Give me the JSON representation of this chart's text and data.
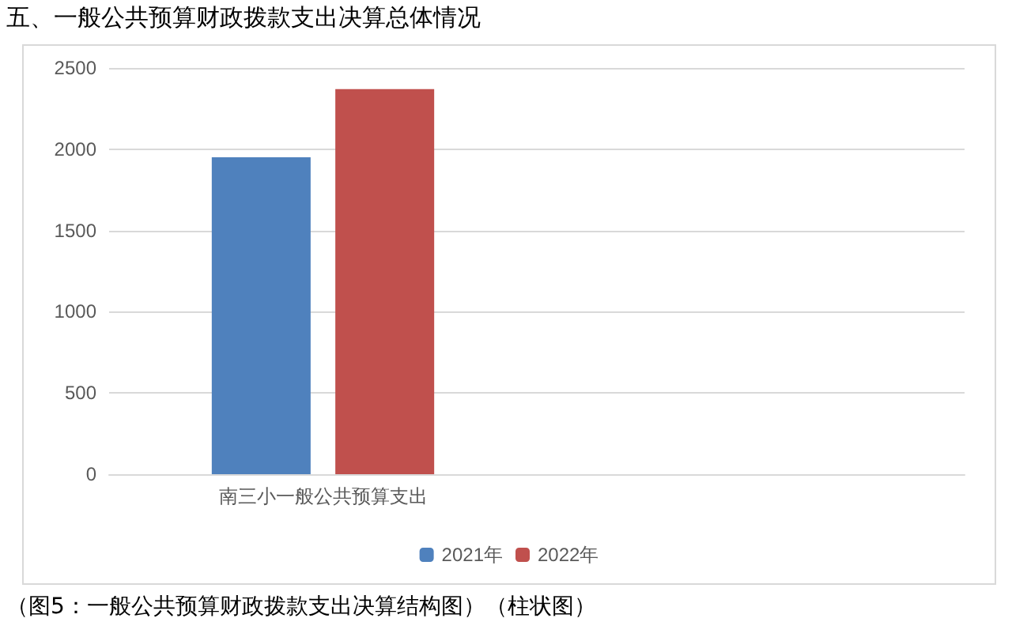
{
  "chart_data": {
    "type": "bar",
    "title": "五、一般公共预算财政拨款支出决算总体情况",
    "categories": [
      "南三小一般公共预算支出",
      null
    ],
    "series": [
      {
        "name": "2021年",
        "color": "#4f81bd",
        "values": [
          1950,
          null
        ]
      },
      {
        "name": "2022年",
        "color": "#c0504d",
        "values": [
          2370,
          null
        ]
      }
    ],
    "ylim": [
      0,
      2500
    ],
    "yticks": [
      0,
      500,
      1000,
      1500,
      2000,
      2500
    ],
    "grid": "y",
    "legend": "bottom",
    "annotations": [
      "（图5：一般公共预算财政拨款支出决算结构图）（柱状图）"
    ]
  }
}
